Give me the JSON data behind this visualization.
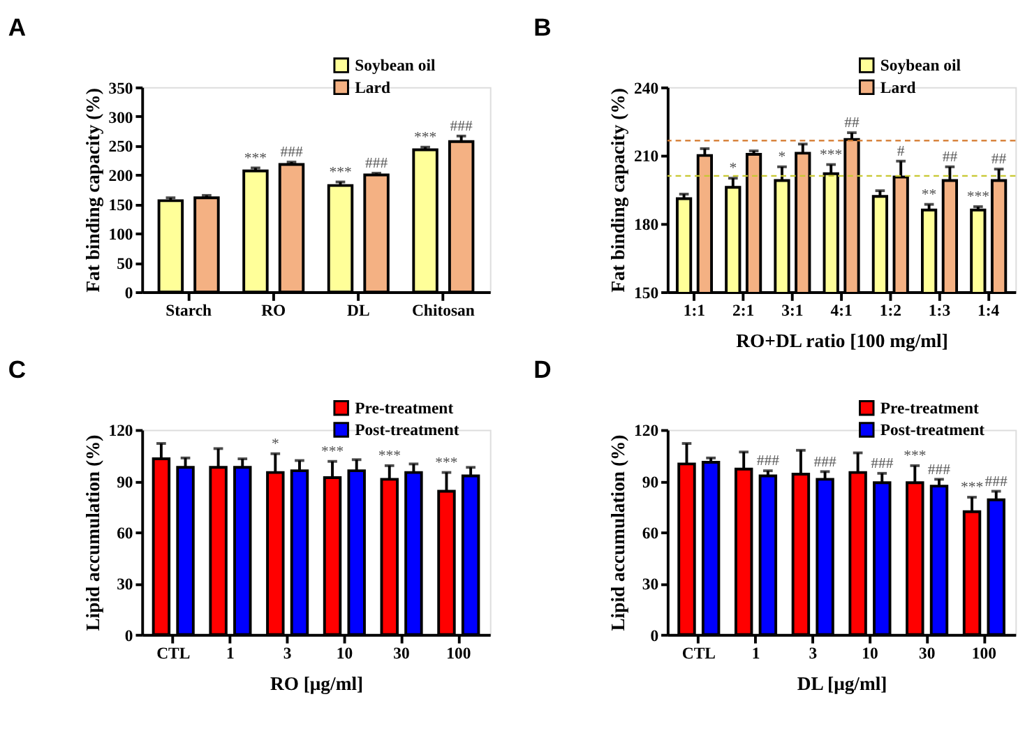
{
  "chart_data": [
    {
      "type": "bar",
      "title": "A",
      "ylabel": "Fat binding capacity (%)",
      "categories": [
        "Starch",
        "RO",
        "DL",
        "Chitosan"
      ],
      "ylim": [
        0,
        350
      ],
      "yticks": [
        0,
        50,
        100,
        150,
        200,
        250,
        300,
        350
      ],
      "legend": "top right",
      "series": [
        {
          "name": "Soybean oil",
          "color": "#ffff99",
          "values": [
            156,
            207,
            182,
            243
          ],
          "errors": [
            5,
            5,
            6,
            4.5
          ],
          "value_labels": [
            null,
            "***",
            "***",
            "***"
          ]
        },
        {
          "name": "Lard",
          "color": "#f4b183",
          "values": [
            161,
            218,
            200,
            257
          ],
          "errors": [
            4,
            4,
            3,
            9.5
          ],
          "value_labels": [
            null,
            "###",
            "###",
            "###"
          ]
        }
      ]
    },
    {
      "type": "bar",
      "title": "B",
      "ylabel": "Fat binding capacity (%)",
      "xlabel": "RO+DL ratio [100 mg/ml]",
      "categories": [
        "1:1",
        "2:1",
        "3:1",
        "4:1",
        "1:2",
        "1:3",
        "1:4"
      ],
      "ylim": [
        150,
        240
      ],
      "yticks": [
        150,
        180,
        210,
        240
      ],
      "legend": "top right",
      "series": [
        {
          "name": "Soybean oil",
          "color": "#ffff99",
          "values": [
            191,
            196,
            199,
            202,
            192,
            186,
            186
          ],
          "errors": [
            2,
            4,
            6,
            4,
            2.5,
            2.5,
            1.5
          ],
          "value_labels": [
            null,
            "*",
            "*",
            "***",
            null,
            "**",
            "***"
          ]
        },
        {
          "name": "Lard",
          "color": "#f4b183",
          "values": [
            210,
            210.5,
            211,
            217,
            200.5,
            199,
            199
          ],
          "errors": [
            3,
            1.5,
            4,
            3,
            7,
            6,
            5
          ],
          "value_labels": [
            null,
            null,
            null,
            "##",
            "#",
            "##",
            "##"
          ]
        }
      ],
      "ref_lines": [
        {
          "axis": "y",
          "value": 216.5,
          "color": "#d4782a",
          "line_style": "dashed"
        },
        {
          "axis": "y",
          "value": 201,
          "color": "#c8c832",
          "line_style": "dashed"
        }
      ]
    },
    {
      "type": "bar",
      "title": "C",
      "ylabel": "Lipid accumulation (%)",
      "xlabel": "RO [μg/ml]",
      "categories": [
        "CTL",
        "1",
        "3",
        "10",
        "30",
        "100"
      ],
      "ylim": [
        0,
        120
      ],
      "yticks": [
        0,
        30,
        60,
        90,
        120
      ],
      "legend": "top right",
      "series": [
        {
          "name": "Pre-treatment",
          "color": "#ff0000",
          "values": [
            103,
            98,
            95,
            92,
            91,
            84
          ],
          "errors": [
            9,
            11,
            11,
            9.5,
            8,
            11
          ],
          "value_labels": [
            null,
            null,
            "*",
            "***",
            "***",
            "***"
          ]
        },
        {
          "name": "Post-treatment",
          "color": "#0000ff",
          "values": [
            98,
            98,
            96,
            96,
            95,
            93
          ],
          "errors": [
            5.5,
            5,
            6,
            6.5,
            5,
            5
          ]
        }
      ]
    },
    {
      "type": "bar",
      "title": "D",
      "ylabel": "Lipid accumulation (%)",
      "xlabel": "DL [μg/ml]",
      "categories": [
        "CTL",
        "1",
        "3",
        "10",
        "30",
        "100"
      ],
      "ylim": [
        0,
        120
      ],
      "yticks": [
        0,
        30,
        60,
        90,
        120
      ],
      "legend": "top right",
      "series": [
        {
          "name": "Pre-treatment",
          "color": "#ff0000",
          "values": [
            100,
            97,
            94,
            95,
            89,
            72
          ],
          "errors": [
            12,
            10,
            14,
            11.5,
            10,
            8.5
          ],
          "value_labels": [
            null,
            null,
            null,
            null,
            "***",
            "***"
          ]
        },
        {
          "name": "Post-treatment",
          "color": "#0000ff",
          "values": [
            101,
            93,
            91,
            89,
            87,
            79
          ],
          "errors": [
            2.5,
            3,
            4.5,
            5.5,
            4,
            5
          ],
          "value_labels": [
            null,
            "###",
            "###",
            "###",
            "###",
            "###"
          ]
        }
      ]
    }
  ]
}
